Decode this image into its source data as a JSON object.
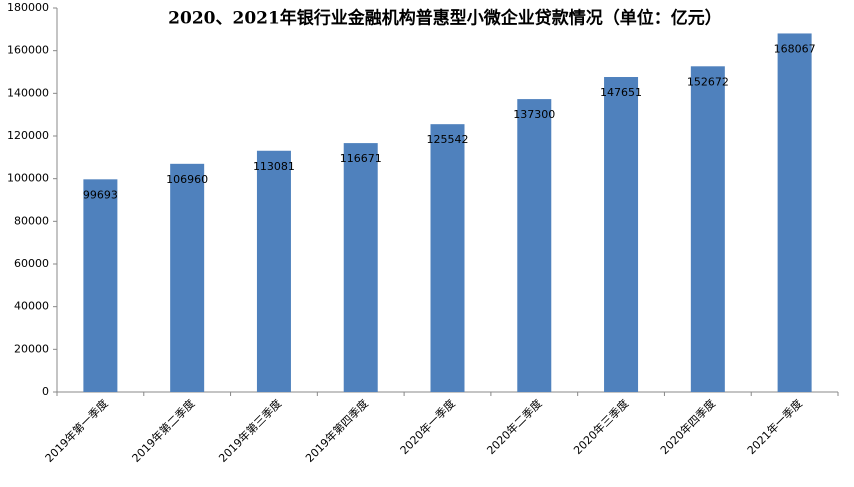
{
  "chart_data": {
    "type": "bar",
    "title": "2020、2021年银行业金融机构普惠型小微企业贷款情况（单位：亿元）",
    "categories": [
      "2019年第一季度",
      "2019年第二季度",
      "2019年第三季度",
      "2019年第四季度",
      "2020年一季度",
      "2020年二季度",
      "2020年三季度",
      "2020年四季度",
      "2021年一季度"
    ],
    "values": [
      99693,
      106960,
      113081,
      116671,
      125542,
      137300,
      147651,
      152672,
      168067
    ],
    "color": "#4f81bd",
    "ylim": [
      0,
      180000
    ],
    "yticks": [
      0,
      20000,
      40000,
      60000,
      80000,
      100000,
      120000,
      140000,
      160000,
      180000
    ],
    "grid": false
  }
}
